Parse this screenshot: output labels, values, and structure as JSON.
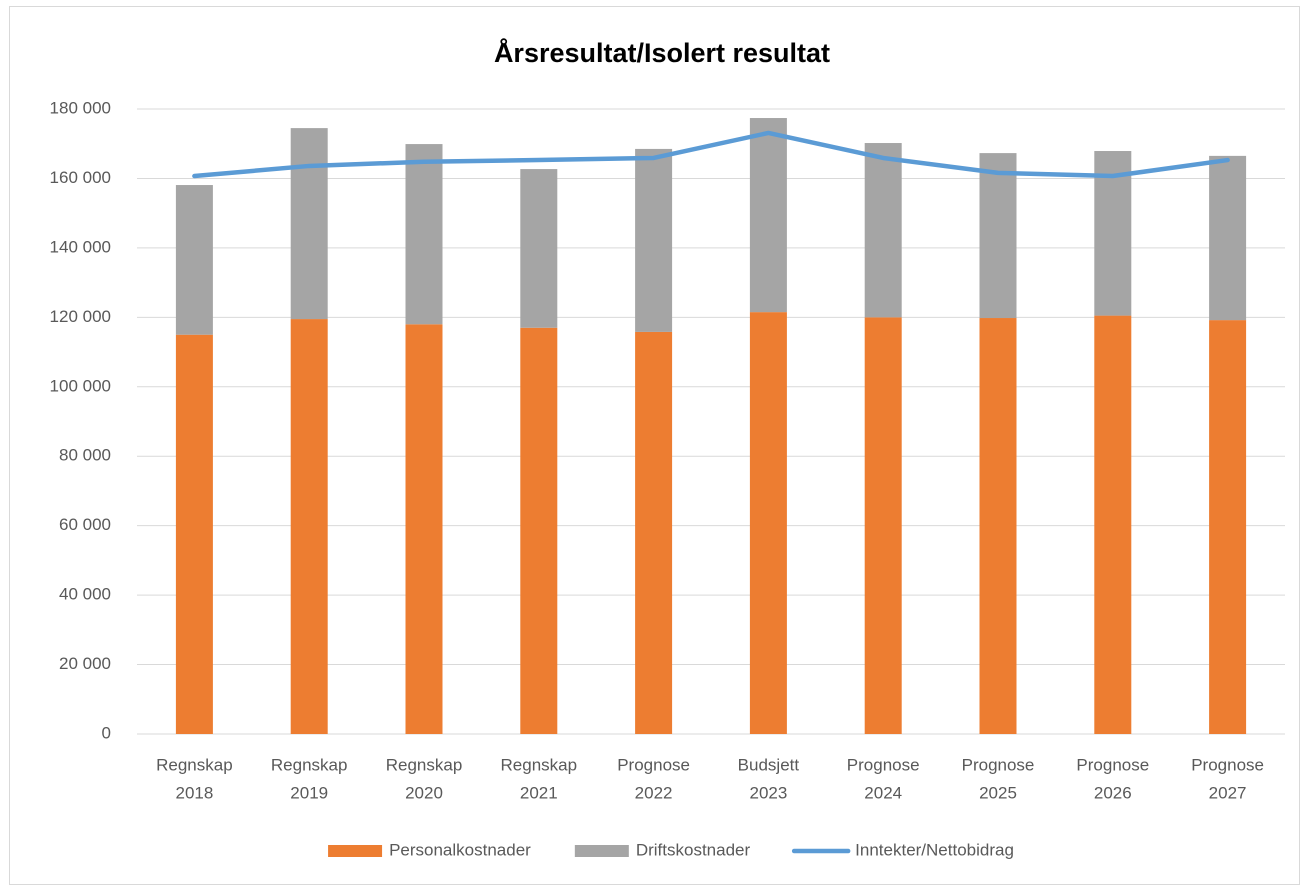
{
  "chart_data": {
    "type": "bar",
    "stacked": true,
    "title": "Årsresultat/Isolert resultat",
    "categories": [
      [
        "Regnskap",
        "2018"
      ],
      [
        "Regnskap",
        "2019"
      ],
      [
        "Regnskap",
        "2020"
      ],
      [
        "Regnskap",
        "2021"
      ],
      [
        "Prognose",
        "2022"
      ],
      [
        "Budsjett",
        "2023"
      ],
      [
        "Prognose",
        "2024"
      ],
      [
        "Prognose",
        "2025"
      ],
      [
        "Prognose",
        "2026"
      ],
      [
        "Prognose",
        "2027"
      ]
    ],
    "series": [
      {
        "name": "Personalkostnader",
        "color": "#ed7d31",
        "values": [
          115000,
          119500,
          118000,
          117000,
          115800,
          121500,
          120000,
          119800,
          120500,
          119200
        ]
      },
      {
        "name": "Driftskostnader",
        "color": "#a5a5a5",
        "values": [
          43100,
          55000,
          51900,
          45700,
          52700,
          55900,
          50200,
          47500,
          47400,
          47300
        ]
      },
      {
        "name": "Inntekter/Nettobidrag",
        "color": "#5b9bd5",
        "type": "line",
        "values": [
          160700,
          163600,
          164800,
          165300,
          165900,
          173100,
          165900,
          161600,
          160700,
          165300
        ]
      }
    ],
    "ylim": [
      0,
      180000
    ],
    "yticks": [
      0,
      {
        "value": 20000,
        "label": "20 000"
      },
      {
        "value": 40000,
        "label": "40 000"
      },
      {
        "value": 60000,
        "label": "60 000"
      },
      {
        "value": 80000,
        "label": "80 000"
      },
      {
        "value": 100000,
        "label": "100 000"
      },
      {
        "value": 120000,
        "label": "120 000"
      },
      {
        "value": 140000,
        "label": "140 000"
      },
      {
        "value": 160000,
        "label": "160 000"
      },
      {
        "value": 180000,
        "label": "180 000"
      }
    ],
    "grid": true,
    "legend": "bottom"
  }
}
